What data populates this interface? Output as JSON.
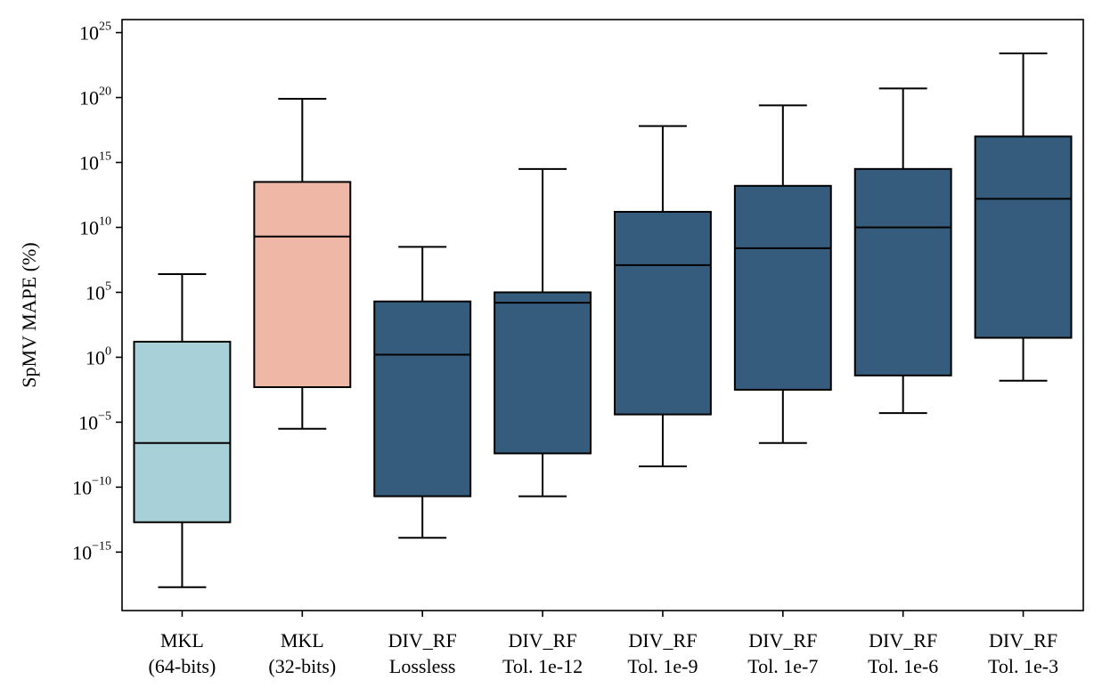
{
  "chart_data": {
    "type": "box",
    "ylabel": "SpMV MAPE (%)",
    "xlabel": "",
    "yscale": "log",
    "ylim_exponents": [
      -19.5,
      26
    ],
    "y_ticks": [
      {
        "base": "10",
        "exp": "−15",
        "value": 1e-15
      },
      {
        "base": "10",
        "exp": "−10",
        "value": 1e-10
      },
      {
        "base": "10",
        "exp": "−5",
        "value": 1e-05
      },
      {
        "base": "10",
        "exp": "0",
        "value": 1
      },
      {
        "base": "10",
        "exp": "5",
        "value": 100000.0
      },
      {
        "base": "10",
        "exp": "10",
        "value": 10000000000.0
      },
      {
        "base": "10",
        "exp": "15",
        "value": 1000000000000000.0
      },
      {
        "base": "10",
        "exp": "20",
        "value": 1e+20
      },
      {
        "base": "10",
        "exp": "25",
        "value": 1e+25
      }
    ],
    "grid": false,
    "legend": "none",
    "categories": [
      {
        "line1": "MKL",
        "line2": "(64-bits)"
      },
      {
        "line1": "MKL",
        "line2": "(32-bits)"
      },
      {
        "line1": "DIV_RF",
        "line2": "Lossless"
      },
      {
        "line1": "DIV_RF",
        "line2": "Tol. 1e-12"
      },
      {
        "line1": "DIV_RF",
        "line2": "Tol. 1e-9"
      },
      {
        "line1": "DIV_RF",
        "line2": "Tol. 1e-7"
      },
      {
        "line1": "DIV_RF",
        "line2": "Tol. 1e-6"
      },
      {
        "line1": "DIV_RF",
        "line2": "Tol. 1e-3"
      }
    ],
    "boxes_log10": [
      {
        "whisker_low": -17.7,
        "q1": -12.7,
        "median": -6.6,
        "q3": 1.2,
        "whisker_high": 6.4,
        "color": "#a8d0d9"
      },
      {
        "whisker_low": -5.5,
        "q1": -2.3,
        "median": 9.3,
        "q3": 13.5,
        "whisker_high": 19.9,
        "color": "#efb7a6"
      },
      {
        "whisker_low": -13.9,
        "q1": -10.7,
        "median": 0.2,
        "q3": 4.3,
        "whisker_high": 8.5,
        "color": "#355c7d"
      },
      {
        "whisker_low": -10.7,
        "q1": -7.4,
        "median": 4.2,
        "q3": 5.0,
        "whisker_high": 14.5,
        "color": "#355c7d"
      },
      {
        "whisker_low": -8.4,
        "q1": -4.4,
        "median": 7.1,
        "q3": 11.2,
        "whisker_high": 17.8,
        "color": "#355c7d"
      },
      {
        "whisker_low": -6.6,
        "q1": -2.5,
        "median": 8.4,
        "q3": 13.2,
        "whisker_high": 19.4,
        "color": "#355c7d"
      },
      {
        "whisker_low": -4.3,
        "q1": -1.4,
        "median": 10.0,
        "q3": 14.5,
        "whisker_high": 20.7,
        "color": "#355c7d"
      },
      {
        "whisker_low": -1.8,
        "q1": 1.5,
        "median": 12.2,
        "q3": 17.0,
        "whisker_high": 23.4,
        "color": "#355c7d"
      }
    ]
  }
}
